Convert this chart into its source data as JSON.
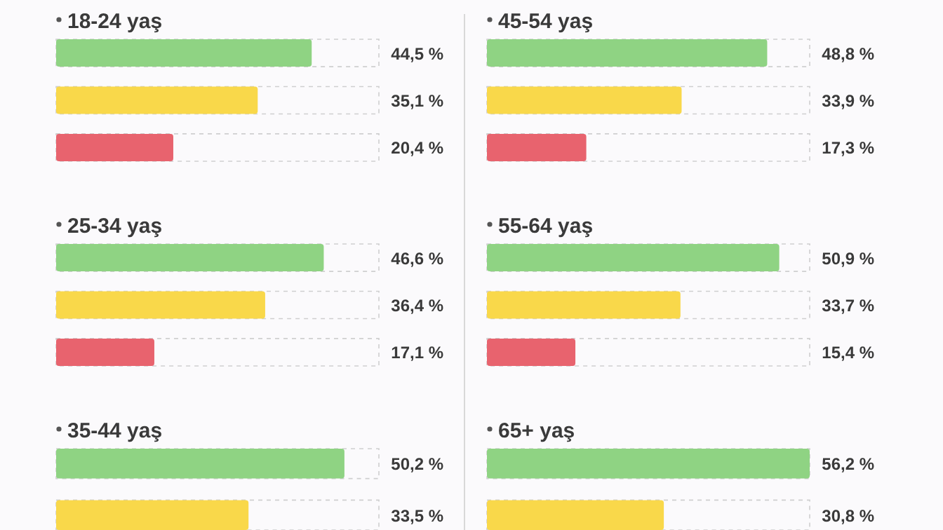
{
  "chart_data": [
    {
      "type": "bar",
      "orientation": "horizontal",
      "title": "18-24 yaş",
      "categories": [
        null,
        null,
        null
      ],
      "values": [
        44.5,
        35.1,
        20.4
      ],
      "colors": [
        "#8fd383",
        "#f9d84a",
        "#e8636e"
      ],
      "value_labels": [
        "44,5 %",
        "35,1 %",
        "20,4 %"
      ]
    },
    {
      "type": "bar",
      "orientation": "horizontal",
      "title": "45-54 yaş",
      "categories": [
        null,
        null,
        null
      ],
      "values": [
        48.8,
        33.9,
        17.3
      ],
      "colors": [
        "#8fd383",
        "#f9d84a",
        "#e8636e"
      ],
      "value_labels": [
        "48,8 %",
        "33,9 %",
        "17,3 %"
      ]
    },
    {
      "type": "bar",
      "orientation": "horizontal",
      "title": "25-34 yaş",
      "categories": [
        null,
        null,
        null
      ],
      "values": [
        46.6,
        36.4,
        17.1
      ],
      "colors": [
        "#8fd383",
        "#f9d84a",
        "#e8636e"
      ],
      "value_labels": [
        "46,6 %",
        "36,4 %",
        "17,1 %"
      ]
    },
    {
      "type": "bar",
      "orientation": "horizontal",
      "title": "55-64 yaş",
      "categories": [
        null,
        null,
        null
      ],
      "values": [
        50.9,
        33.7,
        15.4
      ],
      "colors": [
        "#8fd383",
        "#f9d84a",
        "#e8636e"
      ],
      "value_labels": [
        "50,9 %",
        "33,7 %",
        "15,4 %"
      ]
    },
    {
      "type": "bar",
      "orientation": "horizontal",
      "title": "35-44 yaş",
      "categories": [
        null,
        null
      ],
      "values": [
        50.2,
        33.5
      ],
      "colors": [
        "#8fd383",
        "#f9d84a"
      ],
      "value_labels": [
        "50,2 %",
        "33,5 %"
      ]
    },
    {
      "type": "bar",
      "orientation": "horizontal",
      "title": "65+ yaş",
      "categories": [
        null,
        null
      ],
      "values": [
        56.2,
        30.8
      ],
      "colors": [
        "#8fd383",
        "#f9d84a"
      ],
      "value_labels": [
        "56,2 %",
        "30,8 %"
      ]
    }
  ]
}
